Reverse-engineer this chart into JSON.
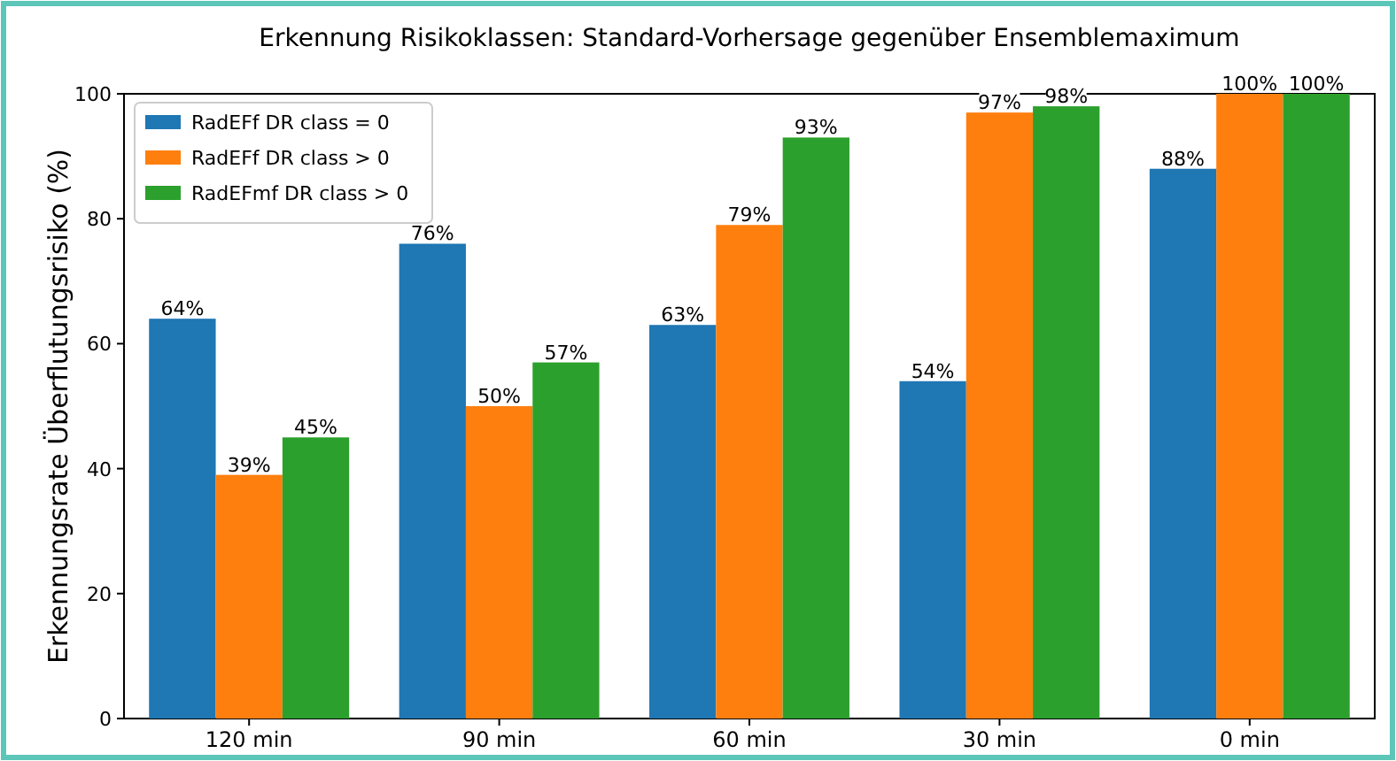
{
  "chart_data": {
    "type": "bar",
    "title": "Erkennung Risikoklassen: Standard-Vorhersage gegenüber Ensemblemaximum",
    "ylabel": "Erkennungsrate Überflutungsrisiko (%)",
    "categories": [
      "120 min",
      "90 min",
      "60 min",
      "30 min",
      "0 min"
    ],
    "series": [
      {
        "name": "RadEFf DR class = 0",
        "color": "#1f77b4",
        "values": [
          64,
          76,
          63,
          54,
          88
        ],
        "value_labels": [
          "64%",
          "76%",
          "63%",
          "54%",
          "88%"
        ]
      },
      {
        "name": "RadEFf DR class > 0",
        "color": "#ff7f0e",
        "values": [
          39,
          50,
          79,
          97,
          100
        ],
        "value_labels": [
          "39%",
          "50%",
          "79%",
          "97%",
          "100%"
        ]
      },
      {
        "name": "RadEFmf DR class > 0",
        "color": "#2ca02c",
        "values": [
          45,
          57,
          93,
          98,
          100
        ],
        "value_labels": [
          "45%",
          "57%",
          "93%",
          "98%",
          "100%"
        ]
      }
    ],
    "ylim": [
      0,
      100
    ],
    "yticks": [
      0,
      20,
      40,
      60,
      80,
      100
    ],
    "legend": "top left"
  }
}
